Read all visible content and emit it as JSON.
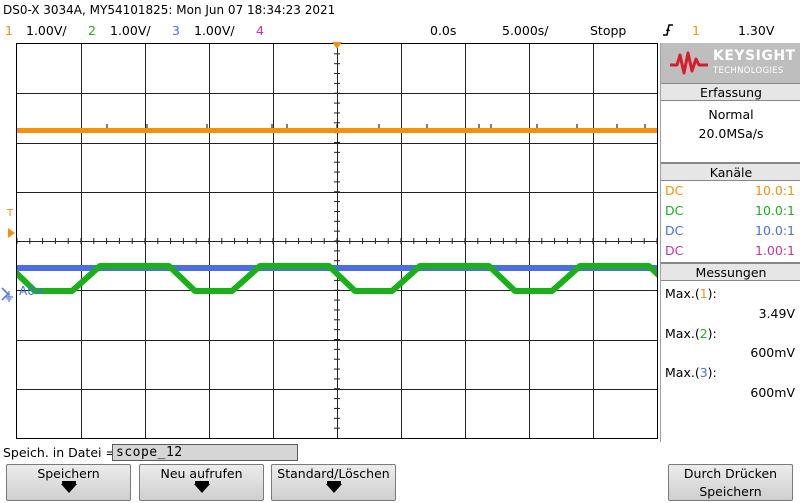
{
  "header": {
    "title": "DS0-X 3034A, MY54101825: Mon Jun 07 18:34:23 2021"
  },
  "channels_bar": {
    "ch1_num": "1",
    "ch1_scale": "1.00V/",
    "ch2_num": "2",
    "ch2_scale": "1.00V/",
    "ch3_num": "3",
    "ch3_scale": "1.00V/",
    "ch4_num": "4",
    "time_offset": "0.0s",
    "time_scale": "5.000s/",
    "run_state": "Stopp",
    "trigger_icon": "trigger-edge-icon",
    "trigger_channel": "1",
    "trigger_level": "1.30V"
  },
  "plot": {
    "trigger_marker": "T",
    "ground_marker": "A0",
    "grid_divisions": {
      "horizontal": 10,
      "vertical": 8
    }
  },
  "colors": {
    "ch1": "#f5900f",
    "ch2": "#19b019",
    "ch3": "#4a6ee6",
    "ch4": "#cc2faa",
    "background": "#ffffff",
    "panel": "#d6d6d6"
  },
  "sidebar": {
    "brand": "KEYSIGHT",
    "brand_sub": "TECHNOLOGIES",
    "acquisition_header": "Erfassung",
    "acquisition_mode": "Normal",
    "sample_rate": "20.0MSa/s",
    "channels_header": "Kanäle",
    "channels": [
      {
        "coupling": "DC",
        "probe": "10.0:1"
      },
      {
        "coupling": "DC",
        "probe": "10.0:1"
      },
      {
        "coupling": "DC",
        "probe": "10.0:1"
      },
      {
        "coupling": "DC",
        "probe": "1.00:1"
      }
    ],
    "measurements_header": "Messungen",
    "measurements": [
      {
        "label_pre": "Max.(",
        "channel": "1",
        "label_post": "):",
        "value": "3.49V"
      },
      {
        "label_pre": "Max.(",
        "channel": "2",
        "label_post": "):",
        "value": "600mV"
      },
      {
        "label_pre": "Max.(",
        "channel": "3",
        "label_post": "):",
        "value": "600mV"
      }
    ]
  },
  "savebar": {
    "label": "Speich. in Datei =",
    "filename": "scope_12"
  },
  "softkeys": {
    "save": "Speichern",
    "recall": "Neu aufrufen",
    "default": "Standard/Löschen",
    "press_save_line1": "Durch Drücken",
    "press_save_line2": "Speichern"
  }
}
